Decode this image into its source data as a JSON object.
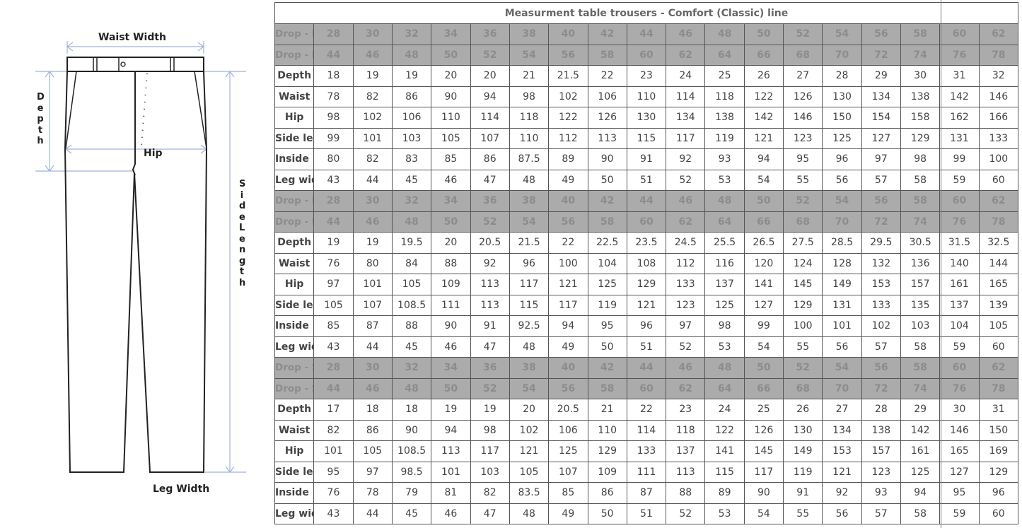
{
  "diagram": {
    "labels": {
      "waist_width": "Waist Width",
      "depth": "Depth",
      "hip": "Hip",
      "side_length": "Side Length",
      "leg_width": "Leg Width"
    },
    "line_color": "#9fb4d8"
  },
  "table": {
    "title": "Measurment table trousers - Comfort (Classic) line",
    "header_bg": "#ababab",
    "sections": [
      {
        "us_label": "Drop - Regular (US Size)",
        "eu_label": "Drop - Regular (European Size)",
        "us": [
          "28",
          "30",
          "32",
          "34",
          "36",
          "38",
          "40",
          "42",
          "44",
          "46",
          "48",
          "50",
          "52",
          "54",
          "56",
          "58",
          "60",
          "62"
        ],
        "eu": [
          "44",
          "46",
          "48",
          "50",
          "52",
          "54",
          "56",
          "58",
          "60",
          "62",
          "64",
          "66",
          "68",
          "70",
          "72",
          "74",
          "76",
          "78"
        ],
        "rows": [
          {
            "label": "Depth",
            "values": [
              "18",
              "19",
              "19",
              "20",
              "20",
              "21",
              "21.5",
              "22",
              "23",
              "24",
              "25",
              "26",
              "27",
              "28",
              "29",
              "30",
              "31",
              "32"
            ]
          },
          {
            "label": "Waist",
            "values": [
              "78",
              "82",
              "86",
              "90",
              "94",
              "98",
              "102",
              "106",
              "110",
              "114",
              "118",
              "122",
              "126",
              "130",
              "134",
              "138",
              "142",
              "146"
            ]
          },
          {
            "label": "Hip",
            "values": [
              "98",
              "102",
              "106",
              "110",
              "114",
              "118",
              "122",
              "126",
              "130",
              "134",
              "138",
              "142",
              "146",
              "150",
              "154",
              "158",
              "162",
              "166"
            ]
          },
          {
            "label": "Side length",
            "values": [
              "99",
              "101",
              "103",
              "105",
              "107",
              "110",
              "112",
              "113",
              "115",
              "117",
              "119",
              "121",
              "123",
              "125",
              "127",
              "129",
              "131",
              "133"
            ]
          },
          {
            "label": "Inside length",
            "values": [
              "80",
              "82",
              "83",
              "85",
              "86",
              "87.5",
              "89",
              "90",
              "91",
              "92",
              "93",
              "94",
              "95",
              "96",
              "97",
              "98",
              "99",
              "100"
            ]
          },
          {
            "label": "Leg width",
            "values": [
              "43",
              "44",
              "45",
              "46",
              "47",
              "48",
              "49",
              "50",
              "51",
              "52",
              "53",
              "54",
              "55",
              "56",
              "57",
              "58",
              "59",
              "60"
            ]
          }
        ]
      },
      {
        "us_label": "Drop - Long (US Size)",
        "eu_label": "Drop - Long (European Size)",
        "us": [
          "28",
          "30",
          "32",
          "34",
          "36",
          "38",
          "40",
          "42",
          "44",
          "46",
          "48",
          "50",
          "52",
          "54",
          "56",
          "58",
          "60",
          "62"
        ],
        "eu": [
          "44",
          "46",
          "48",
          "50",
          "52",
          "54",
          "56",
          "58",
          "60",
          "62",
          "64",
          "66",
          "68",
          "70",
          "72",
          "74",
          "76",
          "78"
        ],
        "rows": [
          {
            "label": "Depth",
            "values": [
              "19",
              "19",
              "19.5",
              "20",
              "20.5",
              "21.5",
              "22",
              "22.5",
              "23.5",
              "24.5",
              "25.5",
              "26.5",
              "27.5",
              "28.5",
              "29.5",
              "30.5",
              "31.5",
              "32.5"
            ]
          },
          {
            "label": "Waist",
            "values": [
              "76",
              "80",
              "84",
              "88",
              "92",
              "96",
              "100",
              "104",
              "108",
              "112",
              "116",
              "120",
              "124",
              "128",
              "132",
              "136",
              "140",
              "144"
            ]
          },
          {
            "label": "Hip",
            "values": [
              "97",
              "101",
              "105",
              "109",
              "113",
              "117",
              "121",
              "125",
              "129",
              "133",
              "137",
              "141",
              "145",
              "149",
              "153",
              "157",
              "161",
              "165"
            ]
          },
          {
            "label": "Side length",
            "values": [
              "105",
              "107",
              "108.5",
              "111",
              "113",
              "115",
              "117",
              "119",
              "121",
              "123",
              "125",
              "127",
              "129",
              "131",
              "133",
              "135",
              "137",
              "139"
            ]
          },
          {
            "label": "Inside length",
            "values": [
              "85",
              "87",
              "88",
              "90",
              "91",
              "92.5",
              "94",
              "95",
              "96",
              "97",
              "98",
              "99",
              "100",
              "101",
              "102",
              "103",
              "104",
              "105"
            ]
          },
          {
            "label": "Leg width",
            "values": [
              "43",
              "44",
              "45",
              "46",
              "47",
              "48",
              "49",
              "50",
              "51",
              "52",
              "53",
              "54",
              "55",
              "56",
              "57",
              "58",
              "59",
              "60"
            ]
          }
        ]
      },
      {
        "us_label": "Drop - Short (US Size)",
        "eu_label": "Drop - Short (European Size)",
        "us": [
          "28",
          "30",
          "32",
          "34",
          "36",
          "38",
          "40",
          "42",
          "44",
          "46",
          "48",
          "50",
          "52",
          "54",
          "56",
          "58",
          "60",
          "62"
        ],
        "eu": [
          "44",
          "46",
          "48",
          "50",
          "52",
          "54",
          "56",
          "58",
          "60",
          "62",
          "64",
          "66",
          "68",
          "70",
          "72",
          "74",
          "76",
          "78"
        ],
        "rows": [
          {
            "label": "Depth",
            "values": [
              "17",
              "18",
              "18",
              "19",
              "19",
              "20",
              "20.5",
              "21",
              "22",
              "23",
              "24",
              "25",
              "26",
              "27",
              "28",
              "29",
              "30",
              "31"
            ]
          },
          {
            "label": "Waist",
            "values": [
              "82",
              "86",
              "90",
              "94",
              "98",
              "102",
              "106",
              "110",
              "114",
              "118",
              "122",
              "126",
              "130",
              "134",
              "138",
              "142",
              "146",
              "150"
            ]
          },
          {
            "label": "Hip",
            "values": [
              "101",
              "105",
              "108.5",
              "113",
              "117",
              "121",
              "125",
              "129",
              "133",
              "137",
              "141",
              "145",
              "149",
              "153",
              "157",
              "161",
              "165",
              "169"
            ]
          },
          {
            "label": "Side length",
            "values": [
              "95",
              "97",
              "98.5",
              "101",
              "103",
              "105",
              "107",
              "109",
              "111",
              "113",
              "115",
              "117",
              "119",
              "121",
              "123",
              "125",
              "127",
              "129"
            ]
          },
          {
            "label": "Inside length",
            "values": [
              "76",
              "78",
              "79",
              "81",
              "82",
              "83.5",
              "85",
              "86",
              "87",
              "88",
              "89",
              "90",
              "91",
              "92",
              "93",
              "94",
              "95",
              "96"
            ]
          },
          {
            "label": "Leg width",
            "values": [
              "43",
              "44",
              "45",
              "46",
              "47",
              "48",
              "49",
              "50",
              "51",
              "52",
              "53",
              "54",
              "55",
              "56",
              "57",
              "58",
              "59",
              "60"
            ]
          }
        ]
      }
    ]
  }
}
